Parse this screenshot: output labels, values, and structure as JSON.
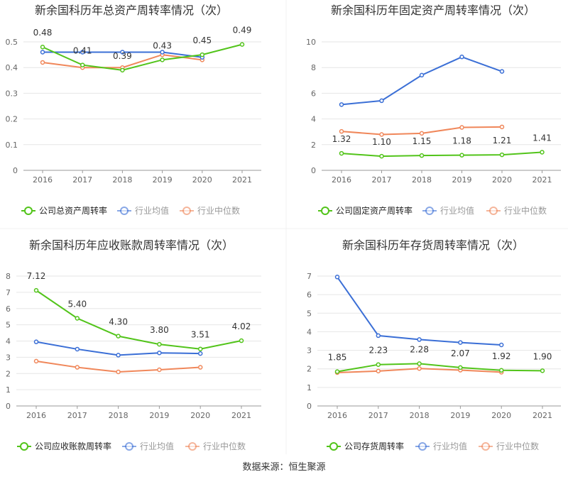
{
  "source_label": "数据来源：恒生聚源",
  "colors": {
    "company": "#52c41a",
    "avg": "#3b6fd6",
    "median": "#f0875a",
    "grid": "#e6e6e6",
    "axis": "#666666",
    "text": "#333333"
  },
  "chart_data": [
    {
      "type": "line",
      "title": "新余国科历年总资产周转率情况（次）",
      "categories": [
        "2016",
        "2017",
        "2018",
        "2019",
        "2020",
        "2021"
      ],
      "ylim": [
        0,
        0.5
      ],
      "yticks": [
        "0",
        "0.1",
        "0.2",
        "0.3",
        "0.4",
        "0.5"
      ],
      "series": [
        {
          "name": "公司总资产周转率",
          "key": "company",
          "values": [
            0.48,
            0.41,
            0.39,
            0.43,
            0.45,
            0.49
          ],
          "labels": [
            "0.48",
            "0.41",
            "0.39",
            "0.43",
            "0.45",
            "0.49"
          ]
        },
        {
          "name": "行业均值",
          "key": "avg",
          "values": [
            0.46,
            0.46,
            0.46,
            0.46,
            0.44,
            null
          ]
        },
        {
          "name": "行业中位数",
          "key": "median",
          "values": [
            0.42,
            0.4,
            0.4,
            0.45,
            0.43,
            null
          ]
        }
      ]
    },
    {
      "type": "line",
      "title": "新余国科历年固定资产周转率情况（次）",
      "categories": [
        "2016",
        "2017",
        "2018",
        "2019",
        "2020",
        "2021"
      ],
      "ylim": [
        0,
        10
      ],
      "yticks": [
        "0",
        "2",
        "4",
        "6",
        "8",
        "10"
      ],
      "series": [
        {
          "name": "公司固定资产周转率",
          "key": "company",
          "values": [
            1.32,
            1.1,
            1.15,
            1.18,
            1.21,
            1.41
          ],
          "labels": [
            "1.32",
            "1.10",
            "1.15",
            "1.18",
            "1.21",
            "1.41"
          ]
        },
        {
          "name": "行业均值",
          "key": "avg",
          "values": [
            5.12,
            5.42,
            7.41,
            8.83,
            7.7,
            null
          ]
        },
        {
          "name": "行业中位数",
          "key": "median",
          "values": [
            3.03,
            2.79,
            2.88,
            3.34,
            3.38,
            null
          ]
        }
      ]
    },
    {
      "type": "line",
      "title": "新余国科历年应收账款周转率情况（次）",
      "categories": [
        "2016",
        "2017",
        "2018",
        "2019",
        "2020",
        "2021"
      ],
      "ylim": [
        0,
        8
      ],
      "yticks": [
        "0",
        "1",
        "2",
        "3",
        "4",
        "5",
        "6",
        "7",
        "8"
      ],
      "series": [
        {
          "name": "公司应收账款周转率",
          "key": "company",
          "values": [
            7.12,
            5.4,
            4.3,
            3.8,
            3.51,
            4.02
          ],
          "labels": [
            "7.12",
            "5.40",
            "4.30",
            "3.80",
            "3.51",
            "4.02"
          ]
        },
        {
          "name": "行业均值",
          "key": "avg",
          "values": [
            3.95,
            3.5,
            3.13,
            3.27,
            3.23,
            null
          ]
        },
        {
          "name": "行业中位数",
          "key": "median",
          "values": [
            2.76,
            2.38,
            2.1,
            2.23,
            2.38,
            null
          ]
        }
      ]
    },
    {
      "type": "line",
      "title": "新余国科历年存货周转率情况（次）",
      "categories": [
        "2016",
        "2017",
        "2018",
        "2019",
        "2020",
        "2021"
      ],
      "ylim": [
        0,
        7
      ],
      "yticks": [
        "0",
        "1",
        "2",
        "3",
        "4",
        "5",
        "6",
        "7"
      ],
      "series": [
        {
          "name": "公司存货周转率",
          "key": "company",
          "values": [
            1.85,
            2.23,
            2.28,
            2.07,
            1.92,
            1.9
          ],
          "labels": [
            "1.85",
            "2.23",
            "2.28",
            "2.07",
            "1.92",
            "1.90"
          ]
        },
        {
          "name": "行业均值",
          "key": "avg",
          "values": [
            6.95,
            3.79,
            3.58,
            3.42,
            3.29,
            null
          ]
        },
        {
          "name": "行业中位数",
          "key": "median",
          "values": [
            1.8,
            1.88,
            2.02,
            1.93,
            1.82,
            null
          ]
        }
      ]
    }
  ]
}
